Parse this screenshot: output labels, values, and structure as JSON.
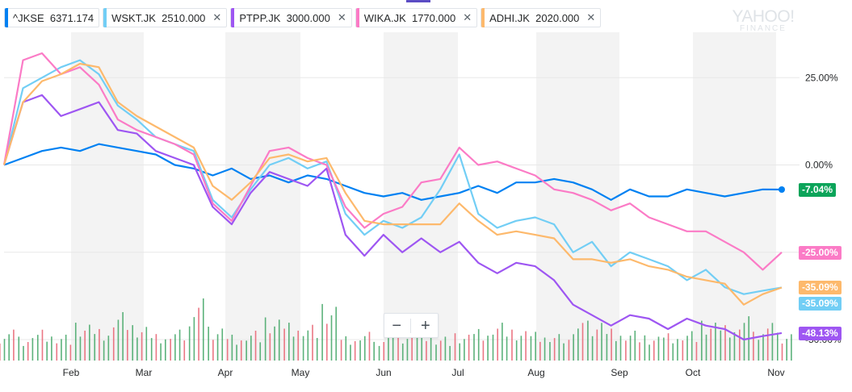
{
  "legend": [
    {
      "symbol": "^JKSE",
      "price": "6371.174",
      "color": "#0081f2",
      "closable": false
    },
    {
      "symbol": "WSKT.JK",
      "price": "2510.000",
      "color": "#72cef5",
      "closable": true
    },
    {
      "symbol": "PTPP.JK",
      "price": "3000.000",
      "color": "#9e56f2",
      "closable": true
    },
    {
      "symbol": "WIKA.JK",
      "price": "1770.000",
      "color": "#fb7bc6",
      "closable": true
    },
    {
      "symbol": "ADHI.JK",
      "price": "2020.000",
      "color": "#fdb96c",
      "closable": true
    }
  ],
  "close_glyph": "✕",
  "watermark": {
    "top": "YAHOO!",
    "bottom": "FINANCE"
  },
  "zoom": {
    "minus": "−",
    "plus": "+"
  },
  "chart_data": {
    "type": "line",
    "months": [
      "Feb",
      "Mar",
      "Apr",
      "May",
      "Jun",
      "Jul",
      "Aug",
      "Sep",
      "Oct",
      "Nov"
    ],
    "y_ticks": [
      "25.00%",
      "0.00%",
      "-25.00%",
      "-50.00%"
    ],
    "y_tick_values": [
      25,
      0,
      -25,
      -50
    ],
    "ylim": [
      -56,
      38
    ],
    "xlim": [
      0,
      41
    ],
    "grid": true,
    "series": [
      {
        "name": "^JKSE",
        "color": "#0081f2",
        "final_label": "-7.04%",
        "badge_color": "#0ca45a",
        "values": [
          0,
          2,
          4,
          5,
          4,
          6,
          5,
          4,
          3,
          0,
          -1,
          -3,
          -1,
          -4,
          -3,
          -5,
          -3,
          -4,
          -6,
          -8,
          -9,
          -8,
          -10,
          -9,
          -8,
          -6,
          -8,
          -5,
          -5,
          -4,
          -5,
          -7,
          -10,
          -7,
          -9,
          -9,
          -7,
          -8,
          -9,
          -8,
          -7,
          -7.04
        ]
      },
      {
        "name": "WSKT.JK",
        "color": "#72cef5",
        "final_label": "-35.09%",
        "badge_color": "#72cef5",
        "values": [
          0,
          22,
          25,
          28,
          30,
          26,
          17,
          13,
          8,
          6,
          4,
          -10,
          -15,
          -7,
          0,
          2,
          -1,
          1,
          -14,
          -20,
          -16,
          -18,
          -15,
          -7,
          3,
          -14,
          -18,
          -16,
          -15,
          -17,
          -25,
          -22,
          -29,
          -25,
          -27,
          -29,
          -33,
          -30,
          -35,
          -37,
          -36,
          -35.1
        ]
      },
      {
        "name": "PTPP.JK",
        "color": "#9e56f2",
        "final_label": "-48.13%",
        "badge_color": "#9e56f2",
        "values": [
          0,
          18,
          20,
          14,
          16,
          18,
          10,
          9,
          4,
          2,
          0,
          -12,
          -17,
          -8,
          -2,
          -4,
          -6,
          -1,
          -20,
          -26,
          -20,
          -25,
          -21,
          -25,
          -22,
          -28,
          -31,
          -28,
          -29,
          -33,
          -40,
          -43,
          -46,
          -43,
          -44,
          -47,
          -44,
          -46,
          -47,
          -50,
          -49,
          -48.13
        ]
      },
      {
        "name": "WIKA.JK",
        "color": "#fb7bc6",
        "final_label": "-25.00%",
        "badge_color": "#fb7bc6",
        "values": [
          0,
          30,
          32,
          26,
          28,
          23,
          13,
          10,
          8,
          6,
          3,
          -11,
          -16,
          -6,
          4,
          5,
          2,
          0,
          -12,
          -18,
          -14,
          -12,
          -5,
          -4,
          5,
          0,
          1,
          -1,
          -3,
          -7,
          -8,
          -10,
          -13,
          -11,
          -15,
          -17,
          -19,
          -19,
          -22,
          -25,
          -30,
          -25
        ]
      },
      {
        "name": "ADHI.JK",
        "color": "#fdb96c",
        "final_label": "-35.09%",
        "badge_color": "#fdb96c",
        "values": [
          0,
          18,
          24,
          26,
          29,
          28,
          18,
          14,
          11,
          8,
          5,
          -6,
          -10,
          -5,
          2,
          3,
          1,
          2,
          -8,
          -16,
          -17,
          -17,
          -17,
          -17,
          -11,
          -16,
          -20,
          -19,
          -20,
          -21,
          -27,
          -27,
          -28,
          -27,
          -29,
          -30,
          -32,
          -33,
          -34,
          -40,
          -37,
          -35.09
        ]
      }
    ],
    "volume": {
      "values": [
        22,
        18,
        25,
        20,
        30,
        24,
        40,
        26,
        18,
        22,
        50,
        28,
        20,
        24,
        35,
        30,
        28,
        45,
        16,
        20,
        18,
        22,
        26,
        18,
        20,
        24,
        30,
        22,
        20,
        18,
        28,
        34,
        26,
        24,
        18,
        20,
        22,
        30,
        26,
        34,
        28,
        22
      ],
      "up_color": "#3fa564",
      "down_color": "#e85f6e"
    }
  }
}
